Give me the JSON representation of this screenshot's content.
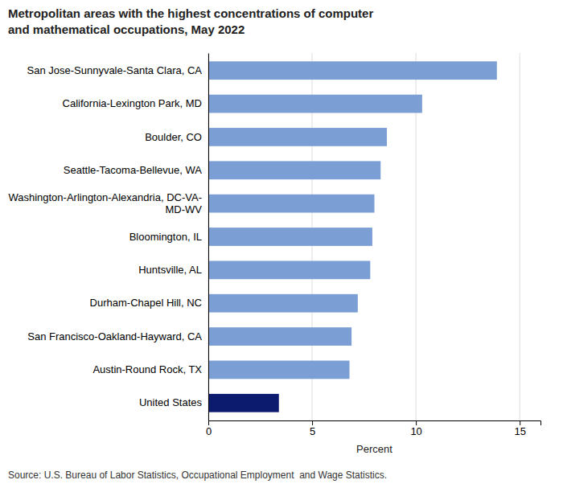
{
  "chart_data": {
    "type": "bar",
    "orientation": "horizontal",
    "title": "Metropolitan areas with the highest concentrations of computer\nand mathematical occupations, May 2022",
    "source": "Source: U.S. Bureau of Labor Statistics, Occupational Employment  and Wage Statistics.",
    "x_label": "Percent",
    "categories": [
      "United States",
      "Austin-Round Rock, TX",
      "San Francisco-Oakland-Hayward, CA",
      "Durham-Chapel Hill, NC",
      "Huntsville, AL",
      "Bloomington, IL",
      "Washington-Arlington-Alexandria, DC-VA-\nMD-WV",
      "Seattle-Tacoma-Bellevue, WA",
      "Boulder, CO",
      "California-Lexington Park, MD",
      "San Jose-Sunnyvale-Santa Clara, CA"
    ],
    "values": [
      3.4,
      6.8,
      6.9,
      7.2,
      7.8,
      7.9,
      8.0,
      8.3,
      8.6,
      10.3,
      13.9
    ],
    "colors": [
      "#0d1b6e",
      "#7b9fd4",
      "#7b9fd4",
      "#7b9fd4",
      "#7b9fd4",
      "#7b9fd4",
      "#7b9fd4",
      "#7b9fd4",
      "#7b9fd4",
      "#7b9fd4",
      "#7b9fd4"
    ],
    "xlim": [
      0,
      16
    ],
    "xticks": [
      0,
      5,
      10,
      15
    ],
    "grid": true
  }
}
